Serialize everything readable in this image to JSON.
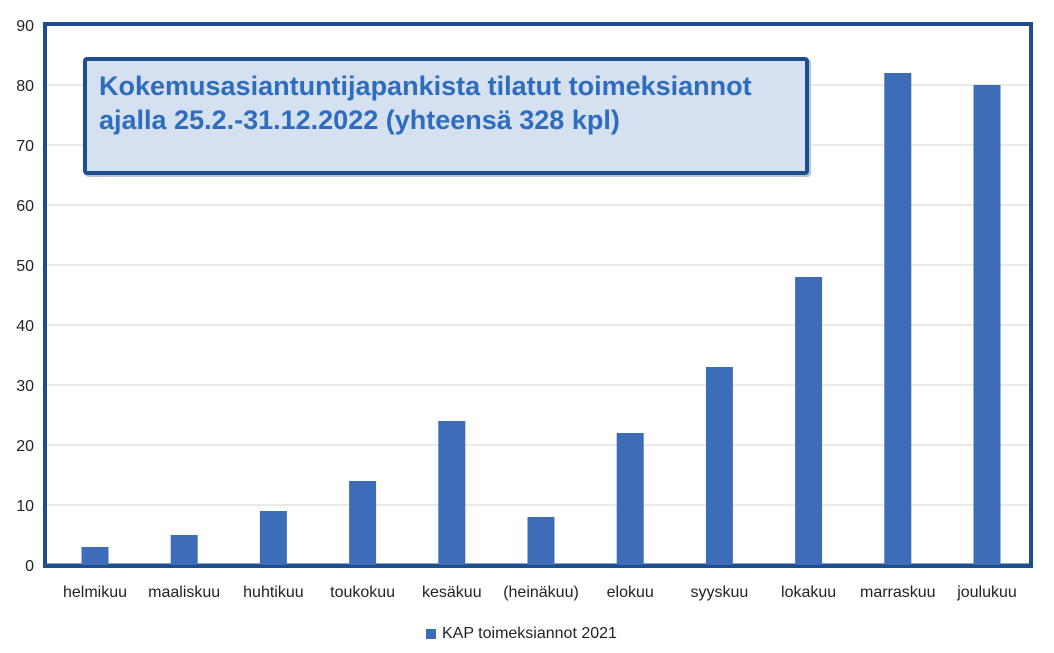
{
  "chart_data": {
    "type": "bar",
    "title_lines": [
      "Kokemusasiantuntijapankista tilatut toimeksiannot",
      "ajalla 25.2.-31.12.2022 (yhteensä 328 kpl)"
    ],
    "categories": [
      "helmikuu",
      "maaliskuu",
      "huhtikuu",
      "toukokuu",
      "kesäkuu",
      "(heinäkuu)",
      "elokuu",
      "syyskuu",
      "lokakuu",
      "marraskuu",
      "joulukuu"
    ],
    "series": [
      {
        "name": "KAP toimeksiannot 2021",
        "values": [
          3,
          5,
          9,
          14,
          24,
          8,
          22,
          33,
          48,
          82,
          80
        ]
      }
    ],
    "ylim": [
      0,
      90
    ],
    "yticks": [
      0,
      10,
      20,
      30,
      40,
      50,
      60,
      70,
      80,
      90
    ],
    "grid": true,
    "legend_position": "bottom",
    "colors": {
      "bar": "#3d6db8",
      "frame": "#1f4e8c",
      "title_text": "#2e6dbd",
      "title_bg": "#d5e0f0"
    }
  }
}
